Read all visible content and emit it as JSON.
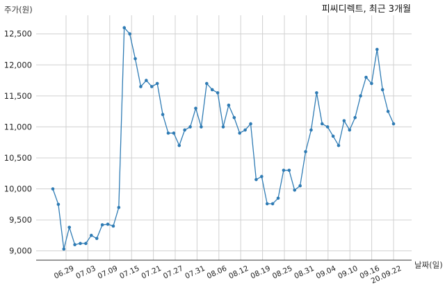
{
  "chart_data": {
    "type": "line",
    "title": "피씨디렉트, 최근 3개월",
    "ylabel": "주가(원)",
    "xlabel": "날짜(일)",
    "ylim": [
      8850,
      12800
    ],
    "y_ticks": [
      9000,
      9500,
      10000,
      10500,
      11000,
      11500,
      12000,
      12500
    ],
    "y_tick_labels": [
      "9,000",
      "9,500",
      "10,000",
      "10,500",
      "11,000",
      "11,500",
      "12,000",
      "12,500"
    ],
    "x_ticks": [
      "06.29",
      "07.03",
      "07.09",
      "07.15",
      "07.21",
      "07.27",
      "07.31",
      "08.06",
      "08.12",
      "08.19",
      "08.25",
      "08.31",
      "09.04",
      "09.10",
      "09.16",
      "20.09.22"
    ],
    "grid": true,
    "color": "#2e7bb4",
    "series": [
      {
        "name": "",
        "values": [
          10000,
          9750,
          9030,
          9380,
          9100,
          9120,
          9120,
          9250,
          9200,
          9420,
          9430,
          9400,
          9700,
          12600,
          12500,
          12100,
          11650,
          11750,
          11650,
          11700,
          11200,
          10900,
          10900,
          10700,
          10950,
          11000,
          11300,
          11000,
          11700,
          11600,
          11550,
          11000,
          11350,
          11150,
          10900,
          10950,
          11050,
          10150,
          10200,
          9760,
          9760,
          9850,
          10300,
          10300,
          9980,
          10050,
          10600,
          10950,
          11550,
          11050,
          11000,
          10850,
          10700,
          11100,
          10950,
          11150,
          11500,
          11800,
          11700,
          12250,
          11600,
          11250,
          11050
        ]
      }
    ]
  }
}
